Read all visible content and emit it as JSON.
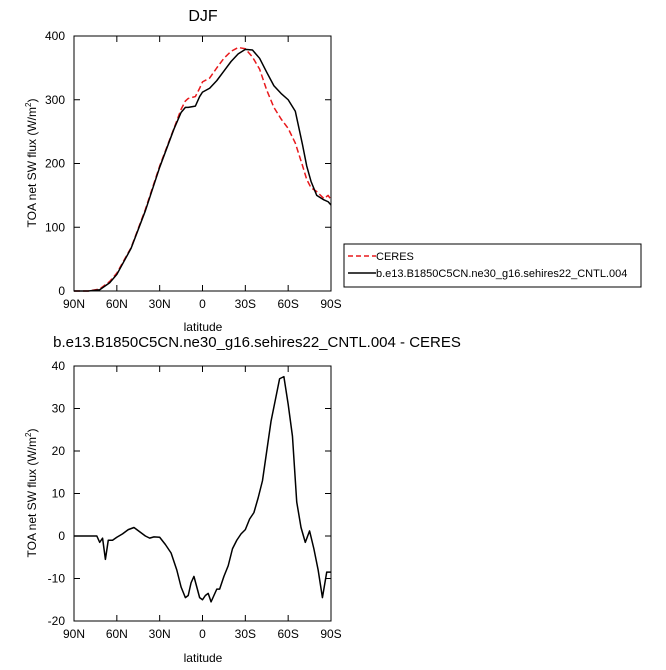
{
  "chart_data": [
    {
      "type": "line",
      "title": "DJF",
      "xlabel": "latitude",
      "ylabel": "TOA net SW flux (W/m",
      "ylabel_sup": "2",
      "ylabel_end": ")",
      "x_tick_values": [
        90,
        60,
        30,
        0,
        -30,
        -60,
        -90
      ],
      "x_tick_labels": [
        "90N",
        "60N",
        "30N",
        "0",
        "30S",
        "60S",
        "90S"
      ],
      "xlim": [
        90,
        -90
      ],
      "ylim": [
        0,
        400
      ],
      "y_ticks": [
        0,
        100,
        200,
        300,
        400
      ],
      "legend": "right",
      "series": [
        {
          "name": "CERES",
          "color": "#e8191c",
          "dash": "dashed",
          "x": [
            90,
            80,
            72,
            65,
            60,
            50,
            40,
            30,
            20,
            15,
            12,
            10,
            5,
            2,
            0,
            -5,
            -10,
            -15,
            -20,
            -25,
            -30,
            -35,
            -40,
            -45,
            -50,
            -55,
            -60,
            -65,
            -70,
            -73,
            -76,
            -80,
            -85,
            -88,
            -90
          ],
          "y": [
            0,
            0,
            3,
            15,
            28,
            68,
            128,
            196,
            255,
            285,
            298,
            302,
            305,
            318,
            328,
            334,
            350,
            365,
            376,
            382,
            380,
            367,
            348,
            315,
            288,
            270,
            255,
            232,
            197,
            175,
            162,
            156,
            145,
            150,
            143
          ]
        },
        {
          "name": "b.e13.B1850C5CN.ne30_g16.sehires22_CNTL.004",
          "color": "#000000",
          "dash": "solid",
          "x": [
            90,
            80,
            72,
            65,
            60,
            50,
            40,
            30,
            20,
            15,
            12,
            10,
            5,
            2,
            0,
            -5,
            -10,
            -15,
            -20,
            -25,
            -30,
            -35,
            -40,
            -45,
            -50,
            -55,
            -60,
            -65,
            -70,
            -73,
            -76,
            -80,
            -85,
            -88,
            -90
          ],
          "y": [
            0,
            0,
            2,
            13,
            26,
            67,
            126,
            194,
            254,
            280,
            288,
            288,
            290,
            305,
            312,
            318,
            330,
            345,
            360,
            372,
            379,
            378,
            365,
            343,
            322,
            310,
            300,
            282,
            230,
            196,
            172,
            150,
            143,
            140,
            135
          ]
        }
      ]
    },
    {
      "type": "line",
      "title": "b.e13.B1850C5CN.ne30_g16.sehires22_CNTL.004 - CERES",
      "xlabel": "latitude",
      "ylabel": "TOA net SW flux (W/m",
      "ylabel_sup": "2",
      "ylabel_end": ")",
      "x_tick_values": [
        90,
        60,
        30,
        0,
        -30,
        -60,
        -90
      ],
      "x_tick_labels": [
        "90N",
        "60N",
        "30N",
        "0",
        "30S",
        "60S",
        "90S"
      ],
      "xlim": [
        90,
        -90
      ],
      "ylim": [
        -20,
        40
      ],
      "y_ticks": [
        -20,
        -10,
        0,
        10,
        20,
        30,
        40
      ],
      "series": [
        {
          "color": "#000000",
          "dash": "solid",
          "x": [
            90,
            86,
            80,
            76,
            74,
            72,
            70,
            68,
            66,
            63,
            60,
            56,
            52,
            48,
            44,
            40,
            37,
            34,
            30,
            26,
            22,
            18,
            15,
            12,
            10,
            8,
            6,
            4,
            2,
            0,
            -2,
            -4,
            -6,
            -8,
            -10,
            -12,
            -15,
            -18,
            -21,
            -24,
            -27,
            -30,
            -33,
            -36,
            -39,
            -42,
            -45,
            -48,
            -51,
            -54,
            -57,
            -60,
            -63,
            -66,
            -69,
            -72,
            -75,
            -78,
            -81,
            -84,
            -87,
            -90
          ],
          "y": [
            0,
            0,
            0,
            0,
            0,
            -1.5,
            -0.5,
            -5.5,
            -1,
            -1,
            -0.3,
            0.5,
            1.5,
            2,
            1,
            0,
            -0.5,
            -0.2,
            -0.3,
            -2,
            -4,
            -8,
            -12,
            -14.5,
            -14,
            -11,
            -9.5,
            -12,
            -14.5,
            -15,
            -14,
            -13.5,
            -15.5,
            -14,
            -12.5,
            -12.5,
            -9.5,
            -7,
            -3,
            -1,
            0.5,
            1.5,
            4,
            5.5,
            9,
            13,
            20,
            27,
            32,
            37,
            37.5,
            31,
            23.5,
            8,
            2,
            -1.5,
            1.2,
            -3,
            -8,
            -14.5,
            -8.5,
            -8.5
          ]
        }
      ]
    }
  ]
}
